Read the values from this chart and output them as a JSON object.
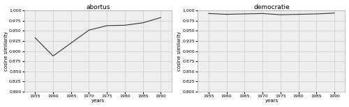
{
  "abortus": {
    "title": "abortus",
    "years": [
      1955,
      1960,
      1965,
      1970,
      1975,
      1980,
      1985,
      1990
    ],
    "values": [
      0.933,
      0.888,
      0.92,
      0.952,
      0.963,
      0.964,
      0.97,
      0.983
    ]
  },
  "democratie": {
    "title": "democratie",
    "years": [
      1955,
      1960,
      1965,
      1970,
      1975,
      1980,
      1985,
      1990
    ],
    "values": [
      0.993,
      0.991,
      0.992,
      0.993,
      0.99,
      0.991,
      0.992,
      0.994
    ]
  },
  "ylabel": "cosine similarity",
  "xlabel": "years",
  "ylim": [
    0.8,
    1.0
  ],
  "yticks": [
    0.8,
    0.825,
    0.85,
    0.875,
    0.9,
    0.925,
    0.95,
    0.975,
    1.0
  ],
  "xticks": [
    1955,
    1960,
    1965,
    1970,
    1975,
    1980,
    1985,
    1990
  ],
  "line_color": "#333333",
  "grid_color": "#cccccc",
  "bg_color": "#eeeeee",
  "title_fontsize": 6.5,
  "label_fontsize": 5.0,
  "tick_fontsize": 4.5,
  "linewidth": 0.8
}
